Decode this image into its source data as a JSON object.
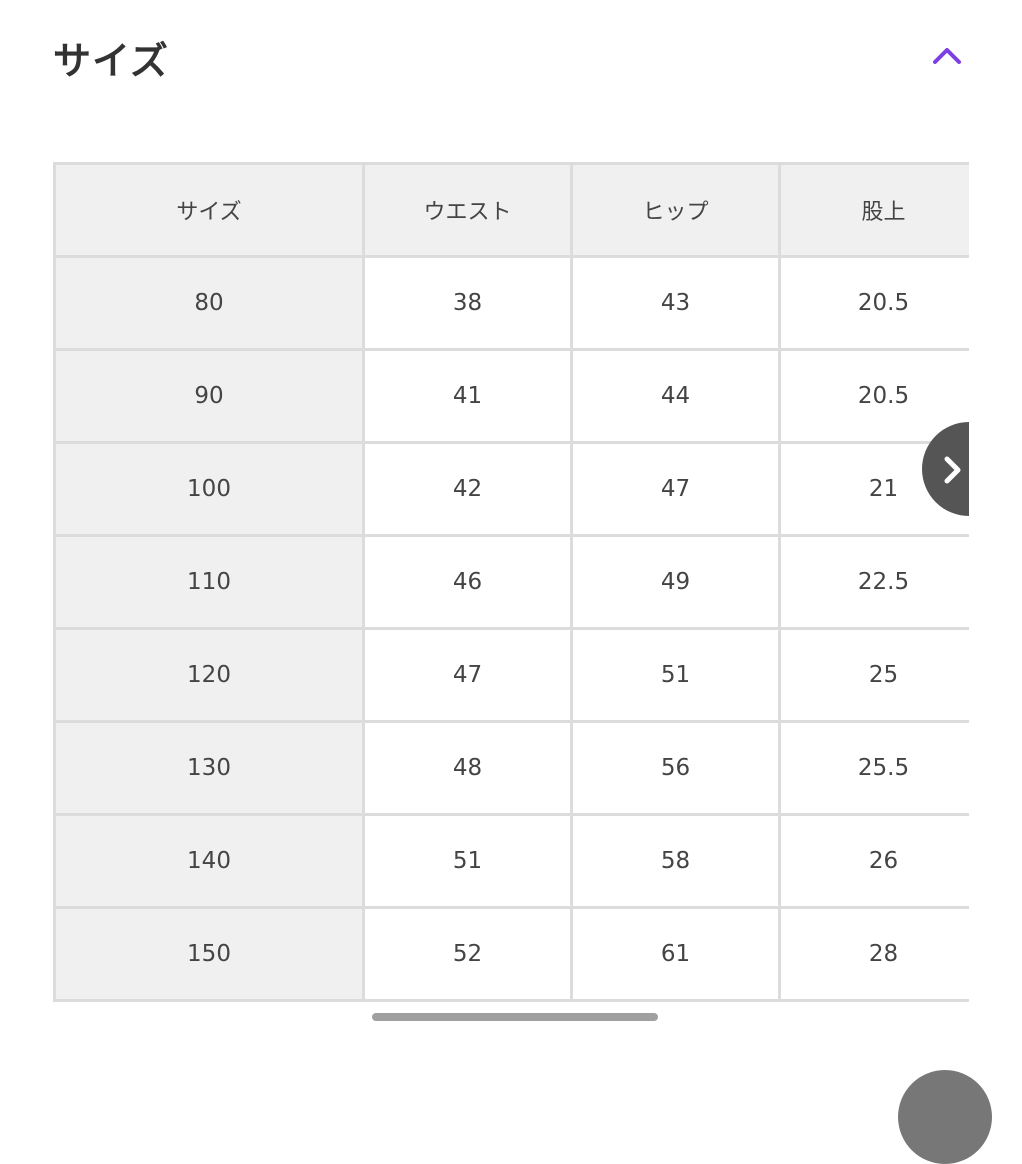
{
  "section": {
    "title": "サイズ",
    "collapse_icon": "chevron-up-icon",
    "accent_color": "#7b3fe4"
  },
  "table": {
    "headers": [
      "サイズ",
      "ウエスト",
      "ヒップ",
      "股上"
    ],
    "rows": [
      [
        "80",
        "38",
        "43",
        "20.5"
      ],
      [
        "90",
        "41",
        "44",
        "20.5"
      ],
      [
        "100",
        "42",
        "47",
        "21"
      ],
      [
        "110",
        "46",
        "49",
        "22.5"
      ],
      [
        "120",
        "47",
        "51",
        "25"
      ],
      [
        "130",
        "48",
        "56",
        "25.5"
      ],
      [
        "140",
        "51",
        "58",
        "26"
      ],
      [
        "150",
        "52",
        "61",
        "28"
      ]
    ],
    "next_icon": "chevron-right-icon"
  }
}
